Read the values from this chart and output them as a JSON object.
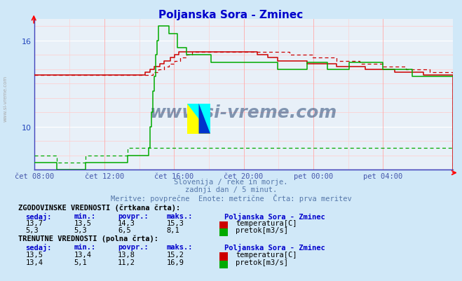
{
  "title": "Poljanska Sora - Zminec",
  "title_color": "#0000cc",
  "bg_color": "#d0e8f8",
  "plot_bg_color": "#e8f0f8",
  "text_below": [
    "Slovenija / reke in morje.",
    "zadnji dan / 5 minut.",
    "Meritve: povprečne  Enote: metrične  Črta: prva meritev"
  ],
  "x_tick_labels": [
    "čet 08:00",
    "čet 12:00",
    "čet 16:00",
    "čet 20:00",
    "pet 00:00",
    "pet 04:00"
  ],
  "x_tick_positions": [
    0.0,
    0.1667,
    0.3333,
    0.5,
    0.6667,
    0.8333
  ],
  "ymin": 7.0,
  "ymax": 17.5,
  "yticks": [
    10,
    16
  ],
  "temp_color": "#cc0000",
  "flow_color": "#00aa00",
  "watermark_text": "www.si-vreme.com",
  "watermark_color": "#1a3a6a",
  "legend_title1": "ZGODOVINSKE VREDNOSTI (črtkana črta):",
  "legend_title2": "TRENUTNE VREDNOSTI (polna črta):",
  "legend_header": "Poljanska Sora - Zminec",
  "col_headers": [
    "sedaj:",
    "min.:",
    "povpr.:",
    "maks.:"
  ],
  "hist_temp": [
    "13,7",
    "13,5",
    "14,3",
    "15,3"
  ],
  "hist_flow": [
    "5,3",
    "5,3",
    "6,5",
    "8,1"
  ],
  "curr_temp": [
    "13,5",
    "13,4",
    "13,8",
    "15,2"
  ],
  "curr_flow": [
    "13,4",
    "5,1",
    "11,2",
    "16,9"
  ],
  "label_temp": "temperatura[C]",
  "label_flow": "pretok[m3/s]"
}
